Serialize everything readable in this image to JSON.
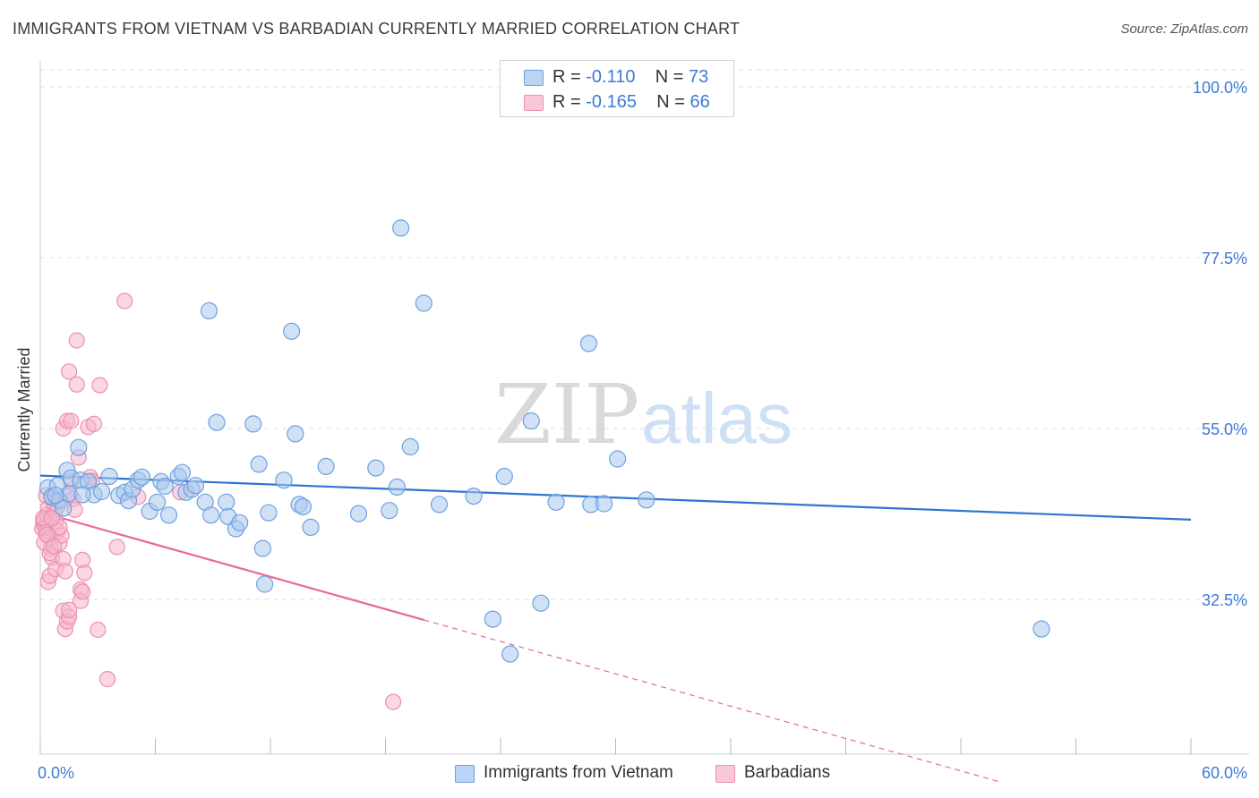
{
  "header": {
    "title": "IMMIGRANTS FROM VIETNAM VS BARBADIAN CURRENTLY MARRIED CORRELATION CHART",
    "source": "Source: ZipAtlas.com"
  },
  "watermark": {
    "zip": "ZIP",
    "atlas": "atlas"
  },
  "colors": {
    "blue_fill": "#a9c8ef",
    "blue_stroke": "#6fa0de",
    "blue_line": "#2f74d0",
    "pink_fill": "#f6b6cb",
    "pink_stroke": "#ec8fb0",
    "pink_line": "#e8689a",
    "axis_label": "#3d7ad6",
    "grid": "#dddddd"
  },
  "legend": {
    "rows": [
      {
        "r_label": "R = ",
        "r_value": "-0.110",
        "n_label": "N = ",
        "n_value": "73"
      },
      {
        "r_label": "R = ",
        "r_value": "-0.165",
        "n_label": "N = ",
        "n_value": "66"
      }
    ]
  },
  "bottom_legend": {
    "series1": "Immigrants from Vietnam",
    "series2": "Barbadians"
  },
  "chart_data": {
    "type": "scatter",
    "title": "IMMIGRANTS FROM VIETNAM VS BARBADIAN CURRENTLY MARRIED CORRELATION CHART",
    "xlabel": "",
    "ylabel": "Currently Married",
    "xlim": [
      0,
      60
    ],
    "ylim": [
      10,
      103
    ],
    "x_tick_labels": [
      "0.0%",
      "60.0%"
    ],
    "y_ticks": [
      32.5,
      55.0,
      77.5,
      100.0
    ],
    "y_tick_labels": [
      "32.5%",
      "55.0%",
      "77.5%",
      "100.0%"
    ],
    "grid": true,
    "series": [
      {
        "name": "Immigrants from Vietnam",
        "r": -0.11,
        "n": 73,
        "trend": {
          "x": [
            0,
            60
          ],
          "y": [
            48.8,
            43.0
          ],
          "dashed_from": null
        },
        "points": [
          [
            0.4,
            47.2
          ],
          [
            0.6,
            46.0
          ],
          [
            0.9,
            47.5
          ],
          [
            1.0,
            45.5
          ],
          [
            1.2,
            44.5
          ],
          [
            1.4,
            49.5
          ],
          [
            1.5,
            46.4
          ],
          [
            1.6,
            48.5
          ],
          [
            2.0,
            52.5
          ],
          [
            2.1,
            48.2
          ],
          [
            2.5,
            48.0
          ],
          [
            2.8,
            46.3
          ],
          [
            3.2,
            46.7
          ],
          [
            3.6,
            48.7
          ],
          [
            4.1,
            46.2
          ],
          [
            4.4,
            46.6
          ],
          [
            4.6,
            45.5
          ],
          [
            4.8,
            47.0
          ],
          [
            5.1,
            48.2
          ],
          [
            5.3,
            48.6
          ],
          [
            5.7,
            44.1
          ],
          [
            6.1,
            45.3
          ],
          [
            6.3,
            48.0
          ],
          [
            6.5,
            47.4
          ],
          [
            6.7,
            43.6
          ],
          [
            7.2,
            48.7
          ],
          [
            7.4,
            49.2
          ],
          [
            7.6,
            46.6
          ],
          [
            7.9,
            47.0
          ],
          [
            8.1,
            47.5
          ],
          [
            8.6,
            45.3
          ],
          [
            8.9,
            43.6
          ],
          [
            8.8,
            70.5
          ],
          [
            9.2,
            55.8
          ],
          [
            9.7,
            45.3
          ],
          [
            9.8,
            43.4
          ],
          [
            10.2,
            41.8
          ],
          [
            10.4,
            42.6
          ],
          [
            11.1,
            55.6
          ],
          [
            11.4,
            50.3
          ],
          [
            11.6,
            39.2
          ],
          [
            11.7,
            34.5
          ],
          [
            11.9,
            43.9
          ],
          [
            12.7,
            48.2
          ],
          [
            13.1,
            67.8
          ],
          [
            13.3,
            54.3
          ],
          [
            13.5,
            45.0
          ],
          [
            13.7,
            44.7
          ],
          [
            14.1,
            42.0
          ],
          [
            14.9,
            50.0
          ],
          [
            16.6,
            43.8
          ],
          [
            17.5,
            49.8
          ],
          [
            18.2,
            44.2
          ],
          [
            18.6,
            47.3
          ],
          [
            18.8,
            81.4
          ],
          [
            19.3,
            52.6
          ],
          [
            20.0,
            71.5
          ],
          [
            20.8,
            45.0
          ],
          [
            22.6,
            46.1
          ],
          [
            23.6,
            29.9
          ],
          [
            24.2,
            48.7
          ],
          [
            24.5,
            25.3
          ],
          [
            25.6,
            56.0
          ],
          [
            26.1,
            32.0
          ],
          [
            26.9,
            45.3
          ],
          [
            28.6,
            66.2
          ],
          [
            28.7,
            45.0
          ],
          [
            29.4,
            45.1
          ],
          [
            30.1,
            51.0
          ],
          [
            31.6,
            45.6
          ],
          [
            52.2,
            28.6
          ],
          [
            0.8,
            46.2
          ],
          [
            2.2,
            46.3
          ]
        ]
      },
      {
        "name": "Barbadians",
        "r": -0.165,
        "n": 66,
        "trend": {
          "x": [
            0,
            20.0
          ],
          "y": [
            44.0,
            29.8
          ],
          "dashed_to": 50.0
        },
        "points": [
          [
            0.1,
            41.8
          ],
          [
            0.15,
            42.6
          ],
          [
            0.2,
            43.0
          ],
          [
            0.25,
            42.0
          ],
          [
            0.3,
            41.4
          ],
          [
            0.35,
            43.6
          ],
          [
            0.4,
            44.5
          ],
          [
            0.45,
            42.2
          ],
          [
            0.5,
            40.6
          ],
          [
            0.55,
            39.2
          ],
          [
            0.6,
            38.0
          ],
          [
            0.7,
            45.1
          ],
          [
            0.75,
            43.8
          ],
          [
            0.8,
            42.8
          ],
          [
            0.4,
            34.8
          ],
          [
            0.5,
            35.6
          ],
          [
            0.5,
            38.6
          ],
          [
            0.8,
            36.5
          ],
          [
            0.9,
            41.5
          ],
          [
            0.95,
            45.6
          ],
          [
            1.0,
            39.9
          ],
          [
            1.1,
            40.9
          ],
          [
            1.2,
            37.8
          ],
          [
            1.3,
            36.2
          ],
          [
            1.2,
            31.0
          ],
          [
            1.3,
            28.6
          ],
          [
            1.4,
            29.6
          ],
          [
            1.5,
            30.2
          ],
          [
            1.5,
            31.1
          ],
          [
            1.2,
            55.0
          ],
          [
            1.5,
            46.4
          ],
          [
            1.6,
            48.0
          ],
          [
            1.7,
            45.7
          ],
          [
            1.8,
            44.3
          ],
          [
            1.4,
            56.0
          ],
          [
            1.5,
            62.5
          ],
          [
            1.6,
            56.0
          ],
          [
            1.9,
            60.8
          ],
          [
            1.9,
            66.6
          ],
          [
            2.0,
            51.2
          ],
          [
            2.1,
            33.8
          ],
          [
            2.1,
            32.3
          ],
          [
            2.2,
            33.5
          ],
          [
            2.2,
            37.7
          ],
          [
            2.3,
            36.0
          ],
          [
            2.6,
            48.6
          ],
          [
            2.7,
            48.1
          ],
          [
            2.5,
            55.2
          ],
          [
            2.8,
            55.6
          ],
          [
            3.1,
            60.7
          ],
          [
            3.0,
            28.5
          ],
          [
            3.5,
            22.0
          ],
          [
            4.0,
            39.4
          ],
          [
            4.4,
            71.8
          ],
          [
            5.1,
            46.0
          ],
          [
            7.3,
            46.6
          ],
          [
            18.4,
            19.0
          ],
          [
            0.3,
            46.2
          ],
          [
            0.6,
            45.8
          ],
          [
            0.2,
            40.0
          ],
          [
            0.35,
            41.0
          ],
          [
            0.7,
            39.5
          ],
          [
            0.9,
            44.8
          ],
          [
            1.0,
            42.0
          ],
          [
            0.15,
            43.2
          ],
          [
            0.6,
            43.2
          ]
        ]
      }
    ]
  }
}
